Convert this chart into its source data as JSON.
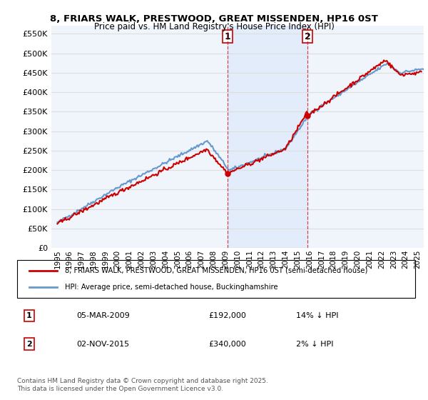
{
  "title1": "8, FRIARS WALK, PRESTWOOD, GREAT MISSENDEN, HP16 0ST",
  "title2": "Price paid vs. HM Land Registry's House Price Index (HPI)",
  "ylabel": "",
  "ylim": [
    0,
    570000
  ],
  "yticks": [
    0,
    50000,
    100000,
    150000,
    200000,
    250000,
    300000,
    350000,
    400000,
    450000,
    500000,
    550000
  ],
  "sale1_date": "05-MAR-2009",
  "sale1_price": 192000,
  "sale1_label": "1",
  "sale1_hpi": "14% ↓ HPI",
  "sale2_date": "02-NOV-2015",
  "sale2_price": 340000,
  "sale2_label": "2",
  "sale2_hpi": "2% ↓ HPI",
  "line1_color": "#cc0000",
  "line2_color": "#6699cc",
  "background_color": "#ffffff",
  "grid_color": "#dddddd",
  "legend1": "8, FRIARS WALK, PRESTWOOD, GREAT MISSENDEN, HP16 0ST (semi-detached house)",
  "legend2": "HPI: Average price, semi-detached house, Buckinghamshire",
  "footnote": "Contains HM Land Registry data © Crown copyright and database right 2025.\nThis data is licensed under the Open Government Licence v3.0.",
  "sale1_x": 2009.17,
  "sale2_x": 2015.84,
  "xmin": 1994.5,
  "xmax": 2025.5
}
